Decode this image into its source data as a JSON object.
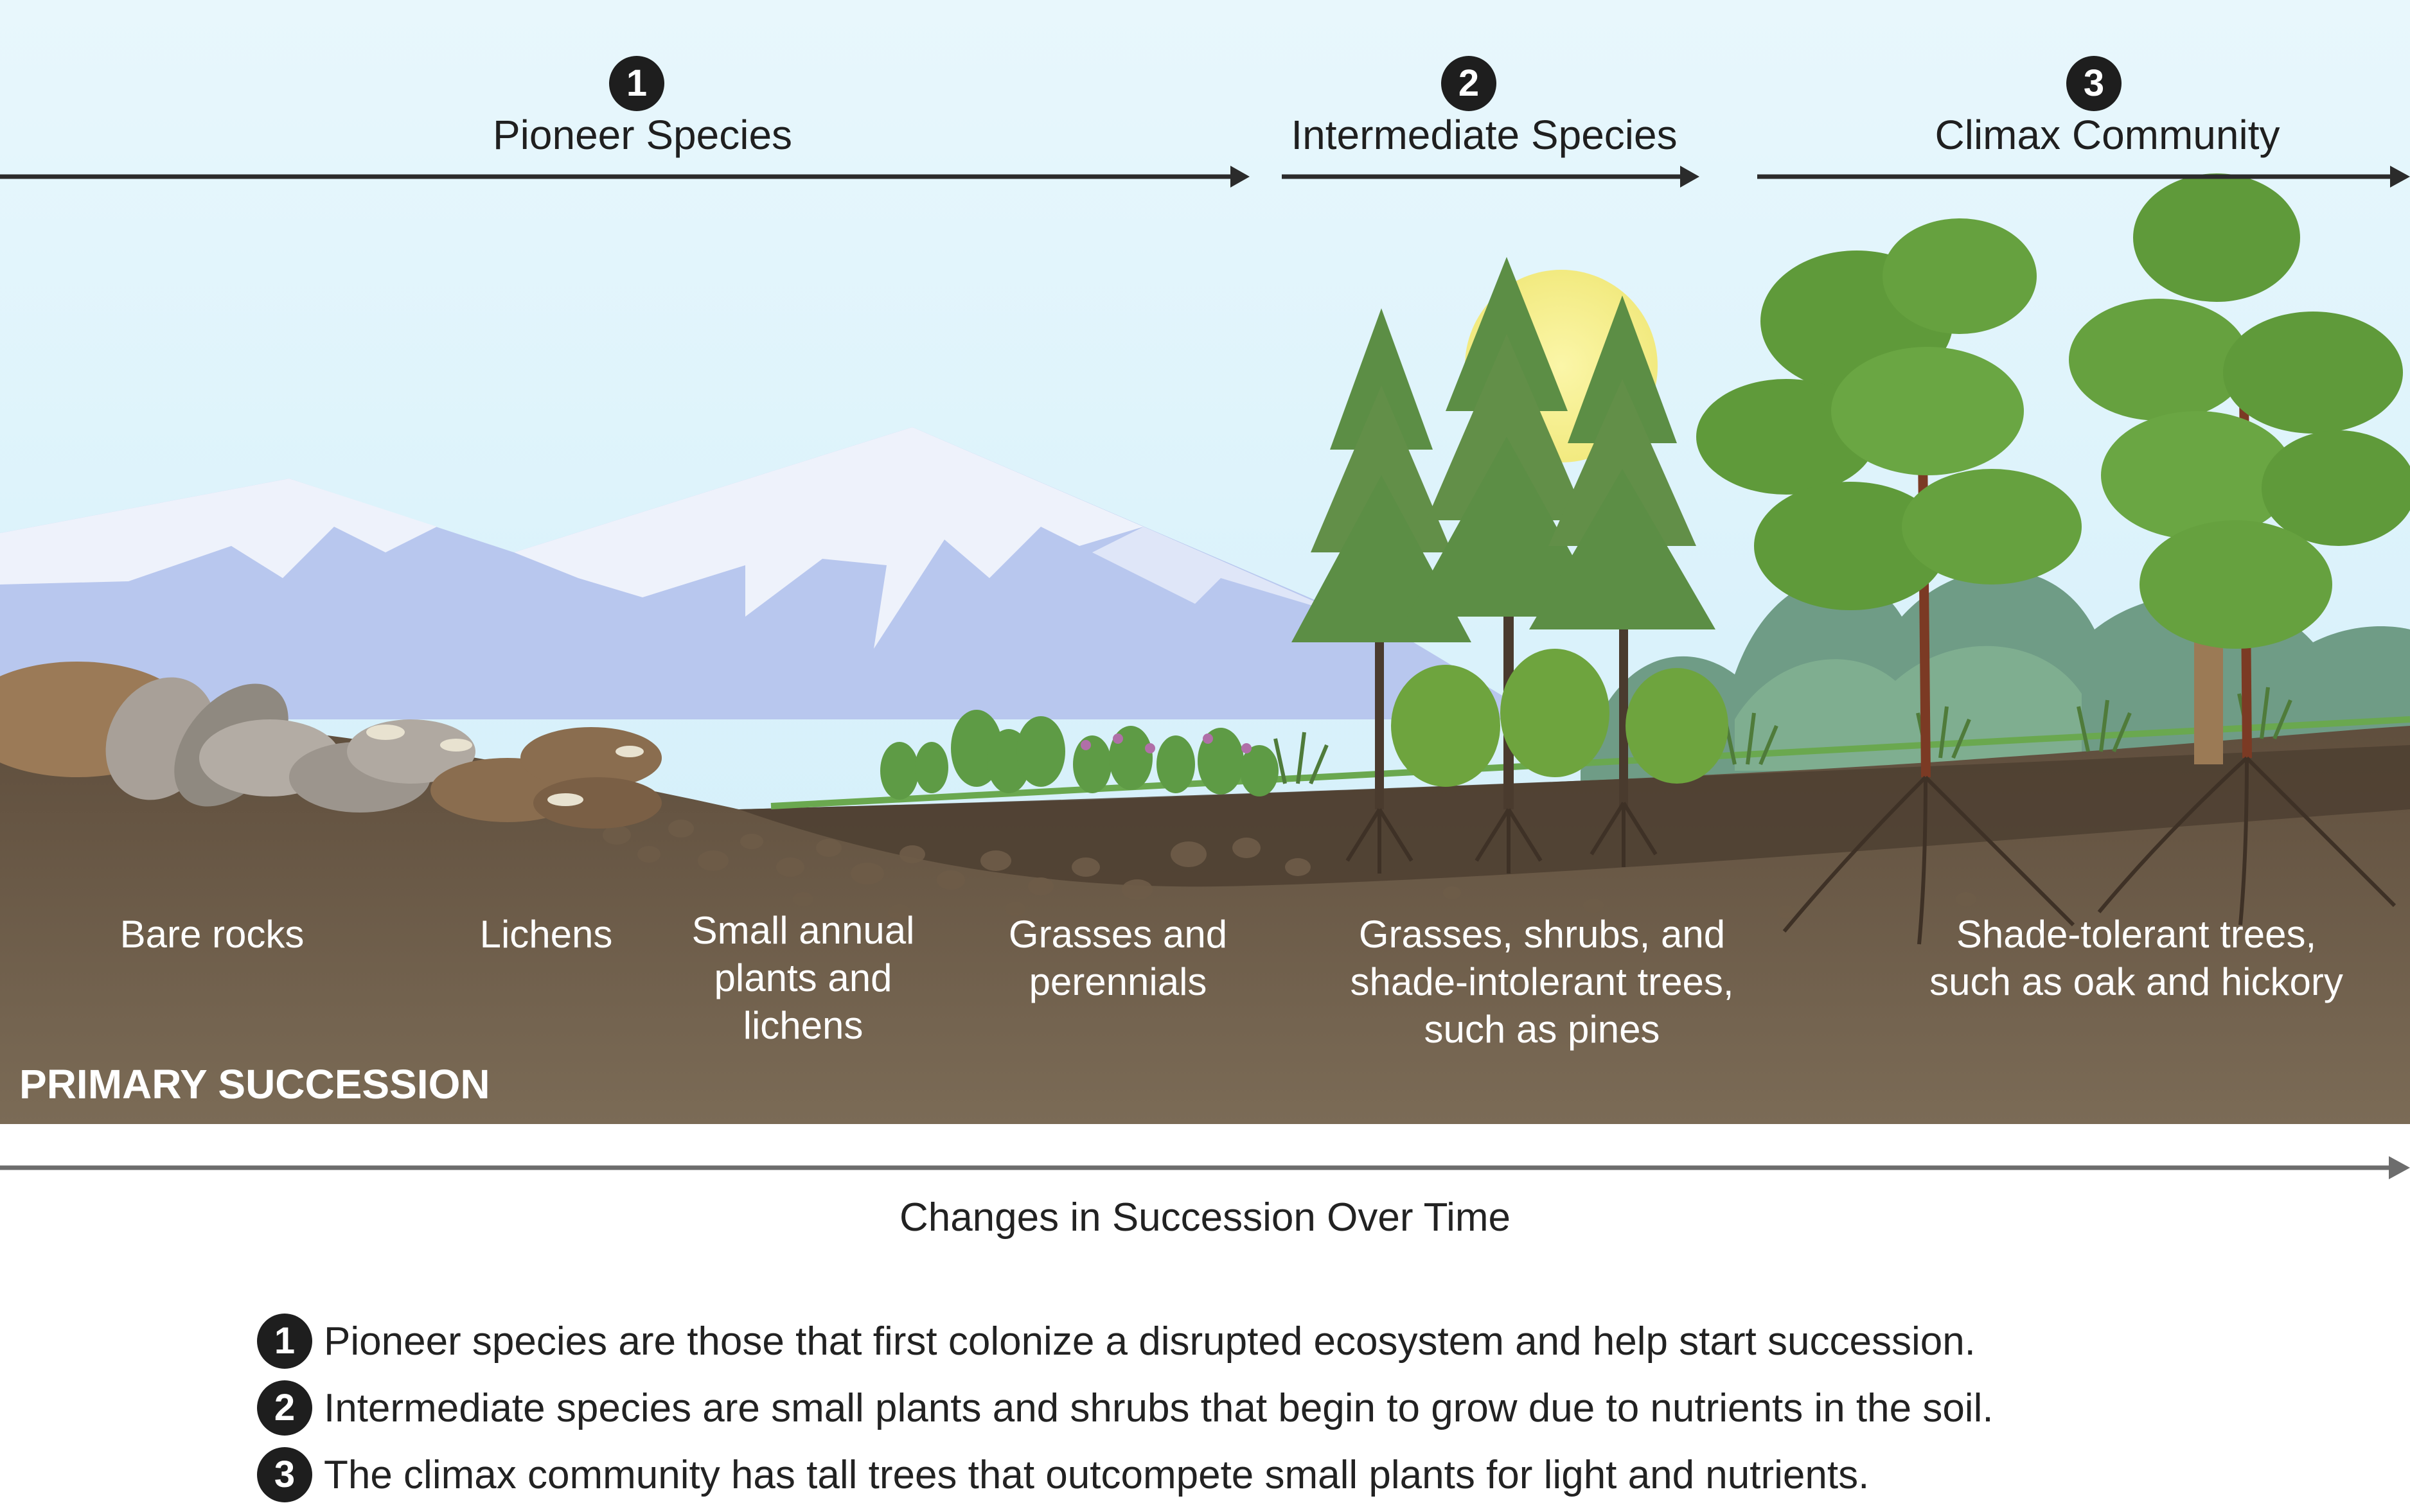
{
  "stages": [
    {
      "number": "1",
      "title": "Pioneer Species"
    },
    {
      "number": "2",
      "title": "Intermediate Species"
    },
    {
      "number": "3",
      "title": "Climax Community"
    }
  ],
  "ground_labels": [
    "Bare rocks",
    "Lichens",
    "Small annual\nplants and\nlichens",
    "Grasses and\nperennials",
    "Grasses, shrubs, and\nshade-intolerant trees,\nsuch as pines",
    "Shade-tolerant trees,\nsuch as oak and hickory"
  ],
  "section_title": "PRIMARY SUCCESSION",
  "axis_label": "Changes in Succession Over Time",
  "notes": [
    {
      "number": "1",
      "text": "Pioneer species are those that first colonize a disrupted ecosystem and help start succession."
    },
    {
      "number": "2",
      "text": "Intermediate species are small plants and shrubs that begin to grow due to nutrients in the soil."
    },
    {
      "number": "3",
      "text": "The climax community has tall trees that outcompete small plants for light and nutrients."
    }
  ],
  "colors": {
    "sky_top": "#e4f6fc",
    "sky_bottom": "#cfeefa",
    "mountain": "#b9c8ee",
    "snow": "#f1f4fc",
    "soil_top": "#6a5845",
    "soil_bottom": "#7a6a55",
    "sun": "#f7f29a",
    "pine": "#5c8e45",
    "broadleaf": "#5f9a3a",
    "badge": "#1e1e1e"
  }
}
